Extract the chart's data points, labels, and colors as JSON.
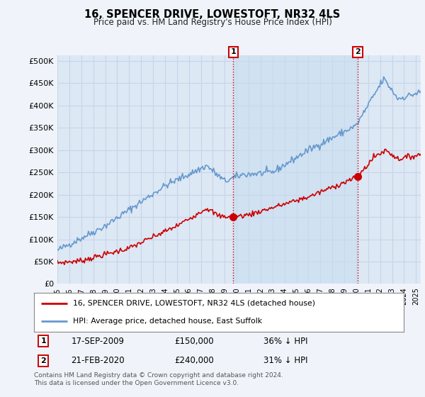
{
  "title": "16, SPENCER DRIVE, LOWESTOFT, NR32 4LS",
  "subtitle": "Price paid vs. HM Land Registry's House Price Index (HPI)",
  "ylabel_ticks": [
    0,
    50000,
    100000,
    150000,
    200000,
    250000,
    300000,
    350000,
    400000,
    450000,
    500000
  ],
  "ylim": [
    0,
    512000
  ],
  "xlim_start": 1995.0,
  "xlim_end": 2025.4,
  "background_color": "#f0f4fa",
  "plot_bg_color": "#dde8f5",
  "shade_color": "#c8ddf0",
  "grid_color": "#c8d4e8",
  "red_line_color": "#cc0000",
  "blue_line_color": "#6699cc",
  "marker1_x": 2009.71,
  "marker1_y": 150000,
  "marker2_x": 2020.13,
  "marker2_y": 240000,
  "sale1_date": "17-SEP-2009",
  "sale1_price": "£150,000",
  "sale1_note": "36% ↓ HPI",
  "sale2_date": "21-FEB-2020",
  "sale2_price": "£240,000",
  "sale2_note": "31% ↓ HPI",
  "legend_line1": "16, SPENCER DRIVE, LOWESTOFT, NR32 4LS (detached house)",
  "legend_line2": "HPI: Average price, detached house, East Suffolk",
  "footnote": "Contains HM Land Registry data © Crown copyright and database right 2024.\nThis data is licensed under the Open Government Licence v3.0."
}
